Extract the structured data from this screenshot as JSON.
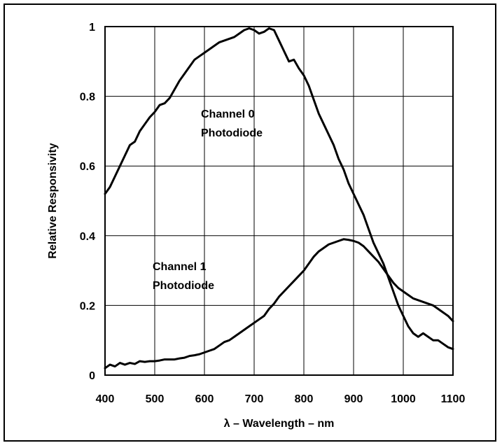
{
  "chart_data": {
    "type": "line",
    "title": "",
    "xlabel": "λ – Wavelength – nm",
    "ylabel": "Relative Responsivity",
    "xlim": [
      400,
      1100
    ],
    "ylim": [
      0,
      1
    ],
    "grid": true,
    "x_ticks": [
      "400",
      "500",
      "600",
      "700",
      "800",
      "900",
      "1000",
      "1100"
    ],
    "y_ticks": [
      "0",
      "0.2",
      "0.4",
      "0.6",
      "0.8",
      "1"
    ],
    "annotations": [
      {
        "id": "ch0",
        "lines": [
          "Channel 0",
          "Photodiode"
        ]
      },
      {
        "id": "ch1",
        "lines": [
          "Channel 1",
          "Photodiode"
        ]
      }
    ],
    "series": [
      {
        "name": "Channel 0 Photodiode",
        "color": "#000000",
        "x": [
          400,
          410,
          420,
          430,
          440,
          450,
          460,
          470,
          480,
          490,
          500,
          510,
          520,
          530,
          540,
          550,
          560,
          570,
          580,
          590,
          600,
          610,
          620,
          630,
          640,
          650,
          660,
          670,
          680,
          690,
          700,
          710,
          720,
          730,
          740,
          750,
          760,
          770,
          780,
          790,
          800,
          810,
          820,
          830,
          840,
          850,
          860,
          870,
          880,
          890,
          900,
          910,
          920,
          930,
          940,
          950,
          960,
          970,
          980,
          990,
          1000,
          1010,
          1020,
          1030,
          1040,
          1050,
          1060,
          1070,
          1080,
          1090,
          1100
        ],
        "y": [
          0.52,
          0.54,
          0.57,
          0.6,
          0.63,
          0.66,
          0.67,
          0.7,
          0.72,
          0.74,
          0.755,
          0.775,
          0.78,
          0.795,
          0.82,
          0.845,
          0.865,
          0.885,
          0.905,
          0.915,
          0.925,
          0.935,
          0.945,
          0.955,
          0.96,
          0.965,
          0.97,
          0.98,
          0.99,
          0.995,
          0.99,
          0.98,
          0.985,
          0.995,
          0.99,
          0.96,
          0.93,
          0.9,
          0.905,
          0.88,
          0.86,
          0.83,
          0.79,
          0.75,
          0.72,
          0.69,
          0.66,
          0.62,
          0.59,
          0.55,
          0.52,
          0.49,
          0.46,
          0.42,
          0.38,
          0.35,
          0.32,
          0.28,
          0.24,
          0.2,
          0.17,
          0.14,
          0.12,
          0.11,
          0.12,
          0.11,
          0.1,
          0.1,
          0.09,
          0.08,
          0.075
        ]
      },
      {
        "name": "Channel 1 Photodiode",
        "color": "#000000",
        "x": [
          400,
          410,
          420,
          430,
          440,
          450,
          460,
          470,
          480,
          490,
          500,
          510,
          520,
          530,
          540,
          550,
          560,
          570,
          580,
          590,
          600,
          610,
          620,
          630,
          640,
          650,
          660,
          670,
          680,
          690,
          700,
          710,
          720,
          730,
          740,
          750,
          760,
          770,
          780,
          790,
          800,
          810,
          820,
          830,
          840,
          850,
          860,
          870,
          880,
          890,
          900,
          910,
          920,
          930,
          940,
          950,
          960,
          970,
          980,
          990,
          1000,
          1010,
          1020,
          1030,
          1040,
          1050,
          1060,
          1070,
          1080,
          1090,
          1100
        ],
        "y": [
          0.02,
          0.03,
          0.025,
          0.035,
          0.03,
          0.035,
          0.032,
          0.04,
          0.038,
          0.04,
          0.04,
          0.042,
          0.045,
          0.045,
          0.045,
          0.048,
          0.05,
          0.055,
          0.057,
          0.06,
          0.065,
          0.07,
          0.075,
          0.085,
          0.095,
          0.1,
          0.11,
          0.12,
          0.13,
          0.14,
          0.15,
          0.16,
          0.17,
          0.19,
          0.205,
          0.225,
          0.24,
          0.255,
          0.27,
          0.285,
          0.3,
          0.32,
          0.34,
          0.355,
          0.365,
          0.375,
          0.38,
          0.385,
          0.39,
          0.388,
          0.385,
          0.38,
          0.37,
          0.355,
          0.34,
          0.325,
          0.305,
          0.285,
          0.265,
          0.25,
          0.24,
          0.23,
          0.22,
          0.215,
          0.21,
          0.205,
          0.2,
          0.19,
          0.18,
          0.17,
          0.155
        ]
      }
    ]
  }
}
